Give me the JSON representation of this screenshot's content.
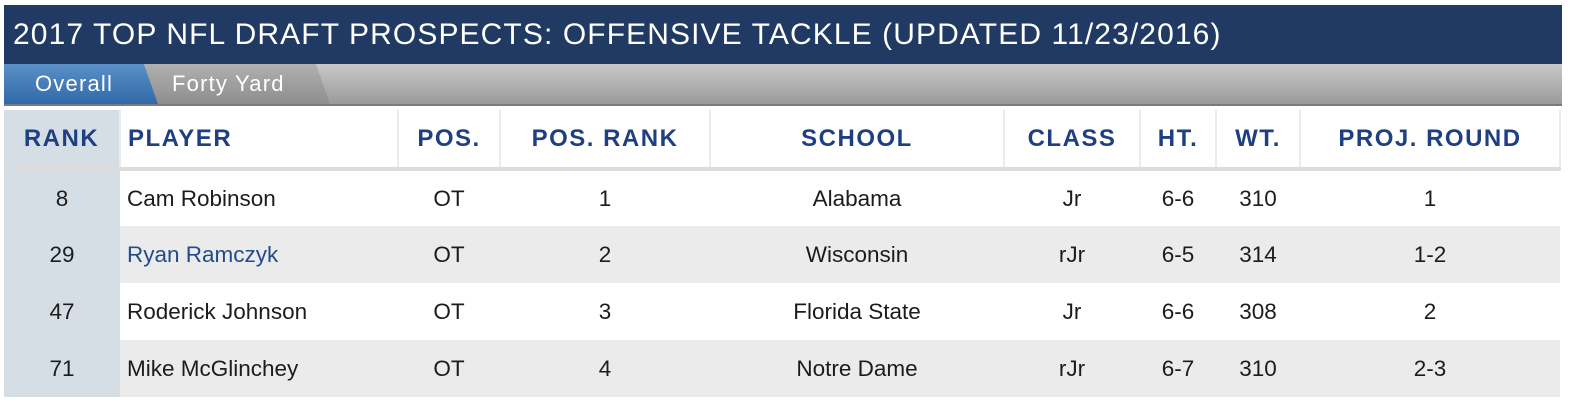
{
  "title": "2017 TOP NFL DRAFT PROSPECTS: OFFENSIVE TACKLE (UPDATED 11/23/2016)",
  "tabs": [
    {
      "label": "Overall",
      "active": true
    },
    {
      "label": "Forty Yard",
      "active": false
    }
  ],
  "columns": {
    "rank": "RANK",
    "player": "PLAYER",
    "pos": "POS.",
    "pos_rank": "POS. RANK",
    "school": "SCHOOL",
    "class": "CLASS",
    "ht": "HT.",
    "wt": "WT.",
    "proj_round": "PROJ. ROUND"
  },
  "rows": [
    {
      "rank": "8",
      "player": "Cam Robinson",
      "player_link": false,
      "pos": "OT",
      "pos_rank": "1",
      "school": "Alabama",
      "class": "Jr",
      "ht": "6-6",
      "wt": "310",
      "proj_round": "1"
    },
    {
      "rank": "29",
      "player": "Ryan Ramczyk",
      "player_link": true,
      "pos": "OT",
      "pos_rank": "2",
      "school": "Wisconsin",
      "class": "rJr",
      "ht": "6-5",
      "wt": "314",
      "proj_round": "1-2"
    },
    {
      "rank": "47",
      "player": "Roderick Johnson",
      "player_link": false,
      "pos": "OT",
      "pos_rank": "3",
      "school": "Florida State",
      "class": "Jr",
      "ht": "6-6",
      "wt": "308",
      "proj_round": "2"
    },
    {
      "rank": "71",
      "player": "Mike McGlinchey",
      "player_link": false,
      "pos": "OT",
      "pos_rank": "4",
      "school": "Notre Dame",
      "class": "rJr",
      "ht": "6-7",
      "wt": "310",
      "proj_round": "2-3"
    }
  ],
  "colors": {
    "title_bg": "#213a63",
    "header_text": "#1f3f83",
    "active_tab": "#3f7cbc",
    "link": "#234b8c",
    "rank_column_bg": "#d6dee5",
    "stripe_bg": "#ebebeb"
  }
}
